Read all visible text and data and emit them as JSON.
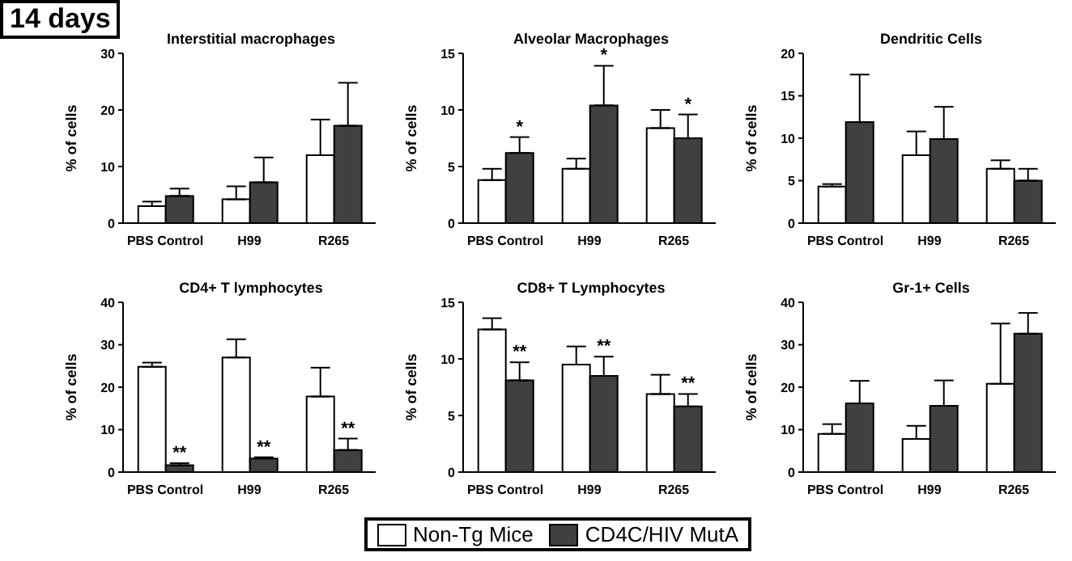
{
  "chart_data": [
    {
      "type": "bar",
      "title": "Interstitial macrophages",
      "ylabel": "% of cells",
      "categories": [
        "PBS Control",
        "H99",
        "R265"
      ],
      "annotations": [
        "14 days"
      ],
      "ylim": [
        0,
        30
      ],
      "yticks": [
        0,
        10,
        20,
        30
      ],
      "legend": false,
      "series": [
        {
          "color": "#ffffff",
          "values": [
            3.0,
            4.2,
            12
          ],
          "errors": [
            [
              3.0,
              3.8
            ],
            [
              4.2,
              6.5
            ],
            [
              12,
              18.3
            ]
          ]
        },
        {
          "color": "#404040",
          "values": [
            4.8,
            7.2,
            17.2
          ],
          "errors": [
            [
              4.8,
              6.1
            ],
            [
              7.2,
              11.6
            ],
            [
              17.2,
              24.8
            ]
          ]
        }
      ]
    },
    {
      "type": "bar",
      "title": "Alveolar Macrophages",
      "ylabel": "% of cells",
      "categories": [
        "PBS Control",
        "H99",
        "R265"
      ],
      "ylim": [
        0,
        15
      ],
      "yticks": [
        0,
        5,
        10,
        15
      ],
      "legend": false,
      "annotations": [
        {
          "text": "*",
          "x": "PBS Control",
          "y": 7.6
        },
        {
          "text": "*",
          "x": "H99",
          "y": 13.9
        },
        {
          "text": "*",
          "x": "R265",
          "y": 9.6
        }
      ],
      "series": [
        {
          "color": "#ffffff",
          "values": [
            3.8,
            4.8,
            8.4
          ],
          "errors": [
            [
              3.8,
              4.8
            ],
            [
              4.8,
              5.7
            ],
            [
              8.4,
              10
            ]
          ]
        },
        {
          "color": "#404040",
          "values": [
            6.2,
            10.4,
            7.5
          ],
          "errors": [
            [
              6.2,
              7.6
            ],
            [
              10.4,
              13.9
            ],
            [
              7.5,
              9.6
            ]
          ]
        }
      ]
    },
    {
      "type": "bar",
      "title": "Dendritic Cells",
      "ylabel": "% of cells",
      "categories": [
        "PBS Control",
        "H99",
        "R265"
      ],
      "ylim": [
        0,
        20
      ],
      "yticks": [
        0,
        5,
        10,
        15,
        20
      ],
      "legend": false,
      "series": [
        {
          "color": "#ffffff",
          "values": [
            4.3,
            8.0,
            6.4
          ],
          "errors": [
            [
              4.3,
              4.6
            ],
            [
              8.0,
              10.8
            ],
            [
              6.4,
              7.4
            ]
          ]
        },
        {
          "color": "#404040",
          "values": [
            11.9,
            9.9,
            5.0
          ],
          "errors": [
            [
              11.9,
              17.5
            ],
            [
              9.9,
              13.7
            ],
            [
              5.0,
              6.4
            ]
          ]
        }
      ]
    },
    {
      "type": "bar",
      "title": "CD4+  T lymphocytes",
      "ylabel": "% of cells",
      "categories": [
        "PBS Control",
        "H99",
        "R265"
      ],
      "ylim": [
        0,
        40
      ],
      "yticks": [
        0,
        10,
        20,
        30,
        40
      ],
      "legend": false,
      "annotations": [
        {
          "text": "**",
          "x": "PBS Control",
          "y": 2.1
        },
        {
          "text": "**",
          "x": "H99",
          "y": 3.5
        },
        {
          "text": "**",
          "x": "R265",
          "y": 7.9
        }
      ],
      "series": [
        {
          "color": "#ffffff",
          "values": [
            24.8,
            27,
            17.8
          ],
          "errors": [
            [
              24.8,
              25.8
            ],
            [
              27,
              31.3
            ],
            [
              17.8,
              24.6
            ]
          ]
        },
        {
          "color": "#404040",
          "values": [
            1.6,
            3.2,
            5.2
          ],
          "errors": [
            [
              1.6,
              2.1
            ],
            [
              3.2,
              3.5
            ],
            [
              5.2,
              7.9
            ]
          ]
        }
      ]
    },
    {
      "type": "bar",
      "title": "CD8+ T Lymphocytes",
      "ylabel": "% of cells",
      "categories": [
        "PBS Control",
        "H99",
        "R265"
      ],
      "ylim": [
        0,
        15
      ],
      "yticks": [
        0,
        5,
        10,
        15
      ],
      "legend": "bottom",
      "annotations": [
        {
          "text": "**",
          "x": "PBS Control",
          "y": 9.7
        },
        {
          "text": "**",
          "x": "H99",
          "y": 10.2
        },
        {
          "text": "**",
          "x": "R265",
          "y": 6.9
        }
      ],
      "series": [
        {
          "name": "Non-Tg Mice",
          "color": "#ffffff",
          "values": [
            12.6,
            9.5,
            6.9
          ],
          "errors": [
            [
              12.6,
              13.6
            ],
            [
              9.5,
              11.1
            ],
            [
              6.9,
              8.6
            ]
          ]
        },
        {
          "name": "CD4C/HIV MutA",
          "color": "#404040",
          "values": [
            8.1,
            8.5,
            5.8
          ],
          "errors": [
            [
              8.1,
              9.7
            ],
            [
              8.5,
              10.2
            ],
            [
              5.8,
              6.9
            ]
          ]
        }
      ]
    },
    {
      "type": "bar",
      "title": "Gr-1+ Cells",
      "ylabel": "% of cells",
      "categories": [
        "PBS Control",
        "H99",
        "R265"
      ],
      "ylim": [
        0,
        40
      ],
      "yticks": [
        0,
        10,
        20,
        30,
        40
      ],
      "legend": false,
      "series": [
        {
          "color": "#ffffff",
          "values": [
            9.0,
            7.8,
            20.8
          ],
          "errors": [
            [
              9.0,
              11.3
            ],
            [
              7.8,
              10.9
            ],
            [
              20.8,
              35
            ]
          ]
        },
        {
          "color": "#404040",
          "values": [
            16.2,
            15.6,
            32.6
          ],
          "errors": [
            [
              16.2,
              21.5
            ],
            [
              15.6,
              21.6
            ],
            [
              32.6,
              37.5
            ]
          ]
        }
      ]
    }
  ]
}
